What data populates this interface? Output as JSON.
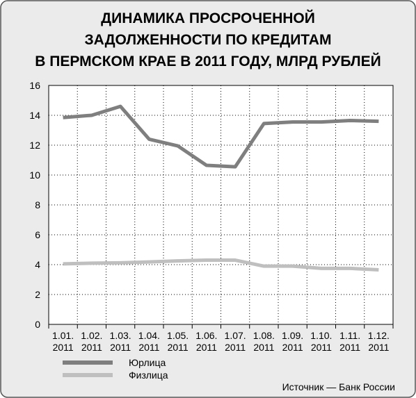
{
  "chart_data": {
    "type": "line",
    "title": "ДИНАМИКА ПРОСРОЧЕННОЙ ЗАДОЛЖЕННОСТИ ПО КРЕДИТАМ В ПЕРМСКОМ КРАЕ В 2011 ГОДУ, МЛРД РУБЛЕЙ",
    "categories": [
      "1.01. 2011",
      "1.02. 2011",
      "1.03. 2011",
      "1.04. 2011",
      "1.05. 2011",
      "1.06. 2011",
      "1.07. 2011",
      "1.08. 2011",
      "1.09. 2011",
      "1.10. 2011",
      "1.11. 2011",
      "1.12. 2011"
    ],
    "series": [
      {
        "name": "Юрлица",
        "color": "#7f7f7f",
        "values": [
          13.85,
          14.0,
          14.6,
          12.4,
          11.95,
          10.65,
          10.55,
          13.45,
          13.55,
          13.55,
          13.65,
          13.6
        ]
      },
      {
        "name": "Физлица",
        "color": "#bfbfbf",
        "values": [
          4.05,
          4.1,
          4.12,
          4.18,
          4.25,
          4.3,
          4.3,
          3.9,
          3.9,
          3.75,
          3.75,
          3.65
        ]
      }
    ],
    "ylim": [
      0,
      16
    ],
    "yticks": [
      0,
      2,
      4,
      6,
      8,
      10,
      12,
      14,
      16
    ],
    "grid": true,
    "source": "Источник — Банк России"
  }
}
